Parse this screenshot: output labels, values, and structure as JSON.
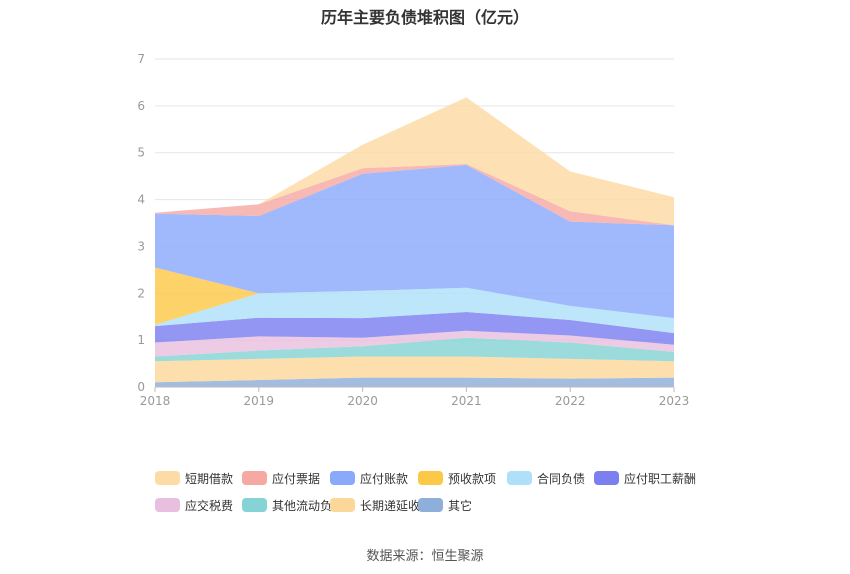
{
  "chart_data": {
    "type": "area",
    "stacked": true,
    "title": "历年主要负债堆积图（亿元）",
    "categories": [
      "2018",
      "2019",
      "2020",
      "2021",
      "2022",
      "2023"
    ],
    "y_ticks": [
      "0",
      "1",
      "2",
      "3",
      "4",
      "5",
      "6",
      "7"
    ],
    "ylim": [
      0,
      7
    ],
    "grid": true,
    "legend_position": "bottom",
    "series": [
      {
        "name": "其它",
        "color": "#8fafdb",
        "values": [
          0.1,
          0.15,
          0.2,
          0.2,
          0.18,
          0.2
        ]
      },
      {
        "name": "长期递延收益",
        "color": "#fbd89a",
        "values": [
          0.45,
          0.45,
          0.45,
          0.45,
          0.42,
          0.35
        ]
      },
      {
        "name": "其他流动负债",
        "color": "#85d3d4",
        "values": [
          0.1,
          0.18,
          0.22,
          0.4,
          0.35,
          0.2
        ]
      },
      {
        "name": "应交税费",
        "color": "#e9bfdf",
        "values": [
          0.3,
          0.3,
          0.18,
          0.15,
          0.15,
          0.15
        ]
      },
      {
        "name": "应付职工薪酬",
        "color": "#7b7ff0",
        "values": [
          0.35,
          0.4,
          0.42,
          0.4,
          0.33,
          0.25
        ]
      },
      {
        "name": "合同负债",
        "color": "#aee0f9",
        "values": [
          0.03,
          0.52,
          0.58,
          0.52,
          0.3,
          0.32
        ]
      },
      {
        "name": "预收款项",
        "color": "#fcc847",
        "values": [
          1.22,
          0.0,
          0.0,
          0.0,
          0.0,
          0.0
        ]
      },
      {
        "name": "应付账款",
        "color": "#8ba9fb",
        "values": [
          1.15,
          1.65,
          2.5,
          2.62,
          1.8,
          1.98
        ]
      },
      {
        "name": "应付票据",
        "color": "#f6a8a3",
        "values": [
          0.02,
          0.25,
          0.12,
          0.02,
          0.22,
          0.0
        ]
      },
      {
        "name": "短期借款",
        "color": "#fddba5",
        "values": [
          0.0,
          0.0,
          0.5,
          1.42,
          0.85,
          0.6
        ]
      }
    ]
  },
  "legend_order": [
    "短期借款",
    "应付票据",
    "应付账款",
    "预收款项",
    "合同负债",
    "应付职工薪酬",
    "应交税费",
    "其他流动负债",
    "长期递延收益",
    "其它"
  ],
  "source": "数据来源：恒生聚源"
}
